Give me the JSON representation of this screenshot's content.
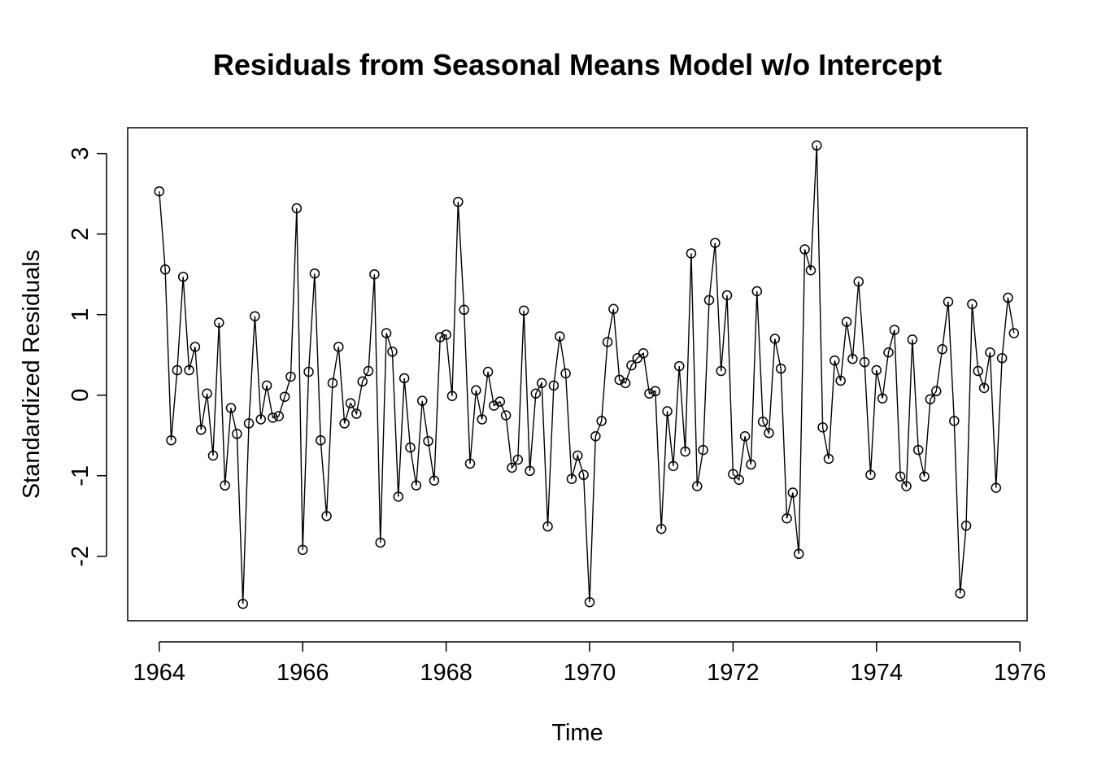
{
  "chart_data": {
    "type": "line",
    "title": "Residuals from Seasonal Means Model w/o Intercept",
    "xlabel": "Time",
    "ylabel": "Standardized Residuals",
    "x_start": 1964,
    "frequency": 12,
    "xlim": [
      1963.56,
      1976.1
    ],
    "ylim": [
      -2.8,
      3.32
    ],
    "x_ticks": [
      "1964",
      "1966",
      "1968",
      "1970",
      "1972",
      "1974",
      "1976"
    ],
    "y_ticks": [
      "-2",
      "-1",
      "0",
      "1",
      "2",
      "3"
    ],
    "marker": "open-circle",
    "grid": false,
    "series": [
      {
        "values": [
          2.53,
          1.56,
          -0.56,
          0.31,
          1.47,
          0.31,
          0.6,
          -0.43,
          0.02,
          -0.75,
          0.9,
          -1.12,
          -0.16,
          -0.48,
          -2.59,
          -0.35,
          0.98,
          -0.3,
          0.12,
          -0.28,
          -0.26,
          -0.02,
          0.23,
          2.32,
          -1.92,
          0.29,
          1.51,
          -0.56,
          -1.5,
          0.15,
          0.6,
          -0.35,
          -0.1,
          -0.23,
          0.17,
          0.3,
          1.5,
          -1.83,
          0.77,
          0.54,
          -1.26,
          0.21,
          -0.65,
          -1.12,
          -0.07,
          -0.57,
          -1.06,
          0.72,
          0.75,
          -0.01,
          2.4,
          1.06,
          -0.85,
          0.06,
          -0.3,
          0.29,
          -0.13,
          -0.08,
          -0.25,
          -0.9,
          -0.8,
          1.05,
          -0.94,
          0.02,
          0.15,
          -1.63,
          0.12,
          0.73,
          0.27,
          -1.04,
          -0.75,
          -0.99,
          -2.57,
          -0.51,
          -0.32,
          0.66,
          1.07,
          0.19,
          0.15,
          0.37,
          0.46,
          0.52,
          0.02,
          0.05,
          -1.66,
          -0.2,
          -0.88,
          0.36,
          -0.7,
          1.76,
          -1.13,
          -0.68,
          1.18,
          1.89,
          0.3,
          1.24,
          -0.98,
          -1.05,
          -0.51,
          -0.86,
          1.29,
          -0.33,
          -0.47,
          0.7,
          0.33,
          -1.53,
          -1.21,
          -1.97,
          1.81,
          1.55,
          3.1,
          -0.4,
          -0.79,
          0.43,
          0.18,
          0.91,
          0.45,
          1.41,
          0.41,
          -0.99,
          0.31,
          -0.04,
          0.53,
          0.81,
          -1.01,
          -1.13,
          0.69,
          -0.68,
          -1.01,
          -0.05,
          0.05,
          0.57,
          1.16,
          -0.32,
          -2.46,
          -1.62,
          1.13,
          0.3,
          0.09,
          0.53,
          -1.15,
          0.46,
          1.21,
          0.77
        ]
      }
    ]
  }
}
